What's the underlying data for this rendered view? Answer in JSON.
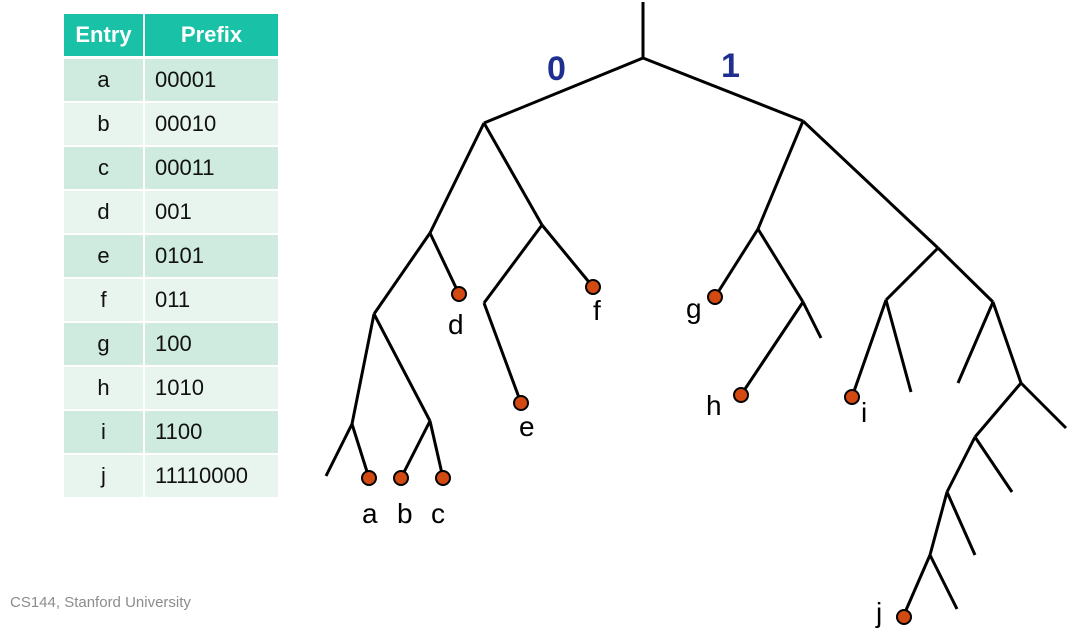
{
  "table": {
    "headers": {
      "entry": "Entry",
      "prefix": "Prefix"
    },
    "rows": [
      {
        "entry": "a",
        "prefix": "00001"
      },
      {
        "entry": "b",
        "prefix": "00010"
      },
      {
        "entry": "c",
        "prefix": "00011"
      },
      {
        "entry": "d",
        "prefix": "001"
      },
      {
        "entry": "e",
        "prefix": "0101"
      },
      {
        "entry": "f",
        "prefix": "011"
      },
      {
        "entry": "g",
        "prefix": "100"
      },
      {
        "entry": "h",
        "prefix": "1010"
      },
      {
        "entry": "i",
        "prefix": "1100"
      },
      {
        "entry": "j",
        "prefix": "11110000"
      }
    ]
  },
  "trie": {
    "left_branch_label": "0",
    "right_branch_label": "1",
    "leaf_labels": {
      "a": "a",
      "b": "b",
      "c": "c",
      "d": "d",
      "e": "e",
      "f": "f",
      "g": "g",
      "h": "h",
      "i": "i",
      "j": "j"
    },
    "colors": {
      "edge": "#000000",
      "leaf": "#d24a12",
      "bit_label": "#1f2f8f"
    }
  },
  "footer": "CS144, Stanford University",
  "colors": {
    "table_header": "#19c1a6",
    "row_dark": "#cfeade",
    "row_light": "#e8f5ef"
  }
}
